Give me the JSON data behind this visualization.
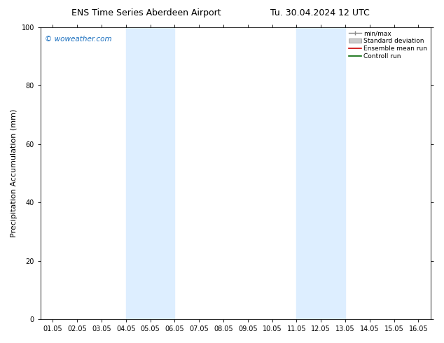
{
  "title1": "ENS Time Series Aberdeen Airport",
  "title2": "Tu. 30.04.2024 12 UTC",
  "ylabel": "Precipitation Accumulation (mm)",
  "ylim": [
    0,
    100
  ],
  "xtick_labels": [
    "01.05",
    "02.05",
    "03.05",
    "04.05",
    "05.05",
    "06.05",
    "07.05",
    "08.05",
    "09.05",
    "10.05",
    "11.05",
    "12.05",
    "13.05",
    "14.05",
    "15.05",
    "16.05"
  ],
  "ytick_values": [
    0,
    20,
    40,
    60,
    80,
    100
  ],
  "shaded_regions": [
    {
      "xmin": 3,
      "xmax": 5,
      "color": "#ddeeff"
    },
    {
      "xmin": 10,
      "xmax": 12,
      "color": "#ddeeff"
    }
  ],
  "watermark": "© woweather.com",
  "watermark_color": "#1a6fbf",
  "legend_labels": [
    "min/max",
    "Standard deviation",
    "Ensemble mean run",
    "Controll run"
  ],
  "legend_colors": [
    "#888888",
    "#bbbbbb",
    "#cc0000",
    "#006600"
  ],
  "background_color": "#ffffff",
  "title_fontsize": 9,
  "tick_fontsize": 7,
  "ylabel_fontsize": 8
}
